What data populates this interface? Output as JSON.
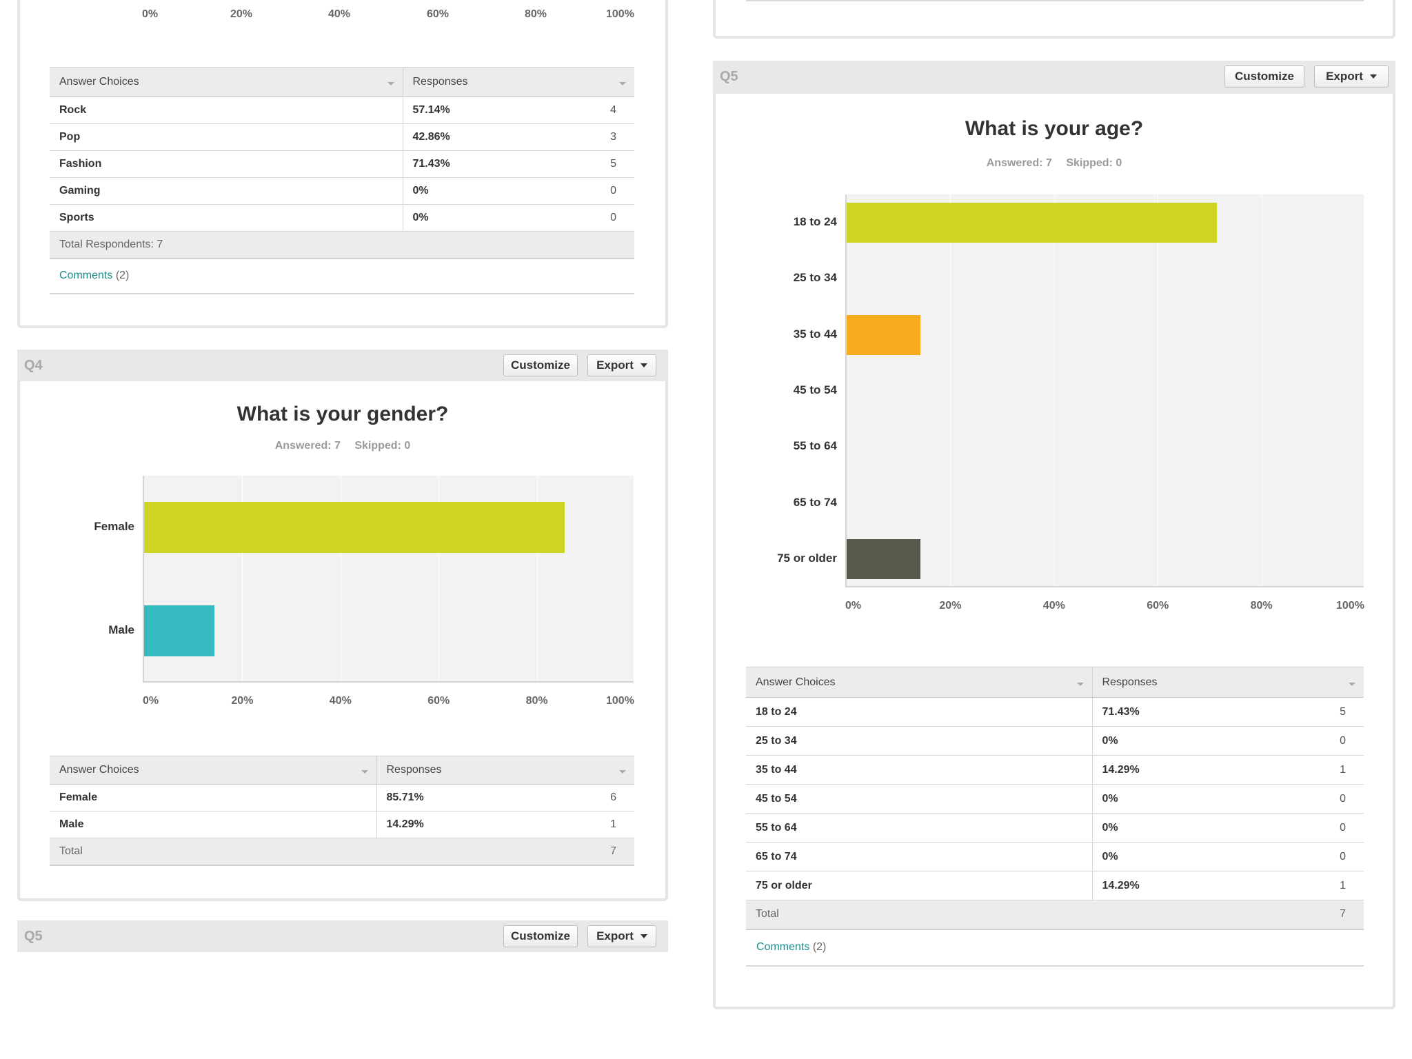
{
  "q3_partial": {
    "ticks": [
      "0%",
      "20%",
      "40%",
      "60%",
      "80%",
      "100%"
    ],
    "table": {
      "header_choices": "Answer Choices",
      "header_responses": "Responses",
      "rows": [
        {
          "choice": "Rock",
          "percent": "57.14%",
          "count": "4"
        },
        {
          "choice": "Pop",
          "percent": "42.86%",
          "count": "3"
        },
        {
          "choice": "Fashion",
          "percent": "71.43%",
          "count": "5"
        },
        {
          "choice": "Gaming",
          "percent": "0%",
          "count": "0"
        },
        {
          "choice": "Sports",
          "percent": "0%",
          "count": "0"
        }
      ],
      "total_respondents": "Total Respondents: 7"
    },
    "comments_link": "Comments",
    "comments_count": "(2)"
  },
  "q4": {
    "label": "Q4",
    "customize_label": "Customize",
    "export_label": "Export",
    "title": "What is your gender?",
    "answered": "Answered: 7",
    "skipped": "Skipped: 0",
    "table": {
      "header_choices": "Answer Choices",
      "header_responses": "Responses",
      "rows": [
        {
          "choice": "Female",
          "percent": "85.71%",
          "count": "6"
        },
        {
          "choice": "Male",
          "percent": "14.29%",
          "count": "1"
        }
      ],
      "total_label": "Total",
      "total_count": "7"
    }
  },
  "q5_lower": {
    "label": "Q5",
    "customize_label": "Customize",
    "export_label": "Export"
  },
  "q5": {
    "label": "Q5",
    "customize_label": "Customize",
    "export_label": "Export",
    "title": "What is your age?",
    "answered": "Answered: 7",
    "skipped": "Skipped: 0",
    "table": {
      "header_choices": "Answer Choices",
      "header_responses": "Responses",
      "rows": [
        {
          "choice": "18 to 24",
          "percent": "71.43%",
          "count": "5"
        },
        {
          "choice": "25 to 34",
          "percent": "0%",
          "count": "0"
        },
        {
          "choice": "35 to 44",
          "percent": "14.29%",
          "count": "1"
        },
        {
          "choice": "45 to 54",
          "percent": "0%",
          "count": "0"
        },
        {
          "choice": "55 to 64",
          "percent": "0%",
          "count": "0"
        },
        {
          "choice": "65 to 74",
          "percent": "0%",
          "count": "0"
        },
        {
          "choice": "75 or older",
          "percent": "14.29%",
          "count": "1"
        }
      ],
      "total_label": "Total",
      "total_count": "7"
    },
    "comments_link": "Comments",
    "comments_count": "(2)"
  },
  "chart_data": [
    {
      "type": "bar",
      "orientation": "horizontal",
      "title": "What is your gender?",
      "categories": [
        "Female",
        "Male"
      ],
      "values": [
        85.71,
        14.29
      ],
      "colors": [
        "#cdd422",
        "#36bcc0"
      ],
      "xlim": [
        0,
        100
      ],
      "ticks": [
        "0%",
        "20%",
        "40%",
        "60%",
        "80%",
        "100%"
      ],
      "grid": true
    },
    {
      "type": "bar",
      "orientation": "horizontal",
      "title": "What is your age?",
      "categories": [
        "18 to 24",
        "25 to 34",
        "35 to 44",
        "45 to 54",
        "55 to 64",
        "65 to 74",
        "75 or older"
      ],
      "values": [
        71.43,
        0,
        14.29,
        0,
        0,
        0,
        14.29
      ],
      "colors": [
        "#cdd422",
        "#cdd422",
        "#f8ab1f",
        "#cdd422",
        "#cdd422",
        "#cdd422",
        "#57594a"
      ],
      "xlim": [
        0,
        100
      ],
      "ticks": [
        "0%",
        "20%",
        "40%",
        "60%",
        "80%",
        "100%"
      ],
      "grid": true
    }
  ]
}
